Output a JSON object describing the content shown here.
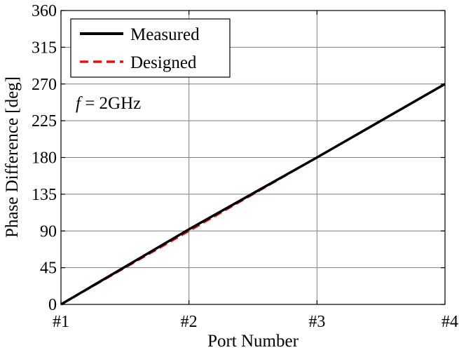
{
  "chart_data": {
    "type": "line",
    "xlabel": "Port Number",
    "ylabel": "Phase Difference [deg]",
    "annotation": {
      "variable": "f",
      "text": " = 2GHz"
    },
    "categories": [
      "#1",
      "#2",
      "#3",
      "#4"
    ],
    "yticks": [
      0,
      45,
      90,
      135,
      180,
      225,
      270,
      315,
      360
    ],
    "ylim": [
      0,
      360
    ],
    "grid": true,
    "legend_position": "top-left",
    "series": [
      {
        "name": "Measured",
        "values": [
          0,
          92,
          180,
          270
        ],
        "color": "#000000",
        "style": "solid"
      },
      {
        "name": "Designed",
        "values": [
          0,
          90,
          180,
          270
        ],
        "color": "#e8120c",
        "style": "dashed"
      }
    ]
  }
}
